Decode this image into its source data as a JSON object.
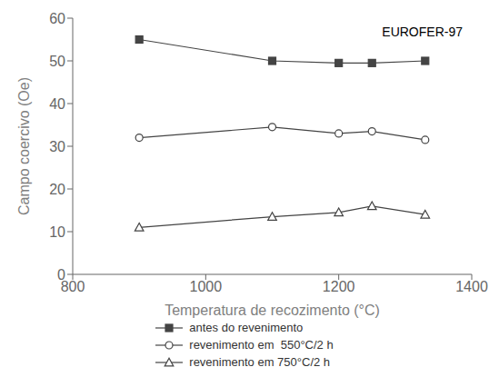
{
  "chart_data": {
    "type": "line",
    "xlabel": "Temperatura de recozimento (°C)",
    "ylabel": "Campo coercivo (Oe)",
    "annotation": "EUROFER-97",
    "x": [
      900,
      1100,
      1200,
      1250,
      1330
    ],
    "series": [
      {
        "name": "antes do revenimento",
        "color": "#444444",
        "marker": "square",
        "values": [
          55,
          50,
          49.5,
          49.5,
          50
        ]
      },
      {
        "name": "revenimento em  550°C/2 h",
        "color": "#444444",
        "marker": "circle_open",
        "values": [
          32,
          34.5,
          33,
          33.5,
          31.5
        ]
      },
      {
        "name": "revenimento em 750°C/2 h",
        "color": "#444444",
        "marker": "triangle_open",
        "values": [
          11,
          13.5,
          14.5,
          16,
          14
        ]
      }
    ],
    "xlim": [
      800,
      1400
    ],
    "ylim": [
      0,
      60
    ],
    "xticks": [
      800,
      1000,
      1200,
      1400
    ],
    "yticks": [
      0,
      10,
      20,
      30,
      40,
      50,
      60
    ],
    "grid": false,
    "legend": "bottom"
  }
}
